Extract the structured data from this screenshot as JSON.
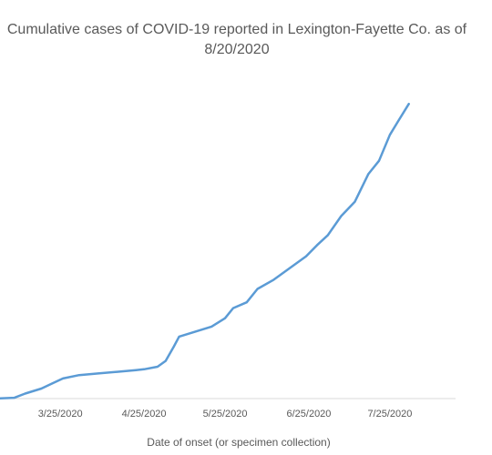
{
  "chart_data": {
    "type": "line",
    "title_line1": "Cumulative cases of COVID-19 reported in Lexington-Fayette Co.  as of",
    "title_line2": "8/20/2020",
    "xlabel": "Date of onset (or specimen collection)",
    "ylabel": "",
    "grid": false,
    "legend": "none",
    "line_color": "#5B9BD5",
    "x_ticks": [
      "3/25/2020",
      "4/25/2020",
      "5/25/2020",
      "6/25/2020",
      "7/25/2020"
    ],
    "xlim": [
      "2020-03-01",
      "2020-08-20"
    ],
    "ylim": [
      0,
      4000
    ],
    "series": [
      {
        "x": [
          "2020-03-01",
          "2020-03-08",
          "2020-03-12",
          "2020-03-18",
          "2020-03-22",
          "2020-03-26",
          "2020-04-01",
          "2020-04-08",
          "2020-04-15",
          "2020-04-22",
          "2020-04-25",
          "2020-04-30",
          "2020-05-03",
          "2020-05-06",
          "2020-05-08",
          "2020-05-14",
          "2020-05-20",
          "2020-05-25",
          "2020-05-28",
          "2020-06-02",
          "2020-06-06",
          "2020-06-12",
          "2020-06-18",
          "2020-06-24",
          "2020-06-28",
          "2020-07-02",
          "2020-07-07",
          "2020-07-12",
          "2020-07-17",
          "2020-07-21",
          "2020-07-25",
          "2020-07-28",
          "2020-08-01"
        ],
        "y": [
          0,
          10,
          60,
          120,
          180,
          240,
          280,
          300,
          320,
          340,
          350,
          380,
          450,
          620,
          740,
          800,
          860,
          960,
          1080,
          1150,
          1310,
          1420,
          1560,
          1700,
          1830,
          1950,
          2180,
          2350,
          2680,
          2840,
          3150,
          3310,
          3520
        ]
      }
    ]
  }
}
